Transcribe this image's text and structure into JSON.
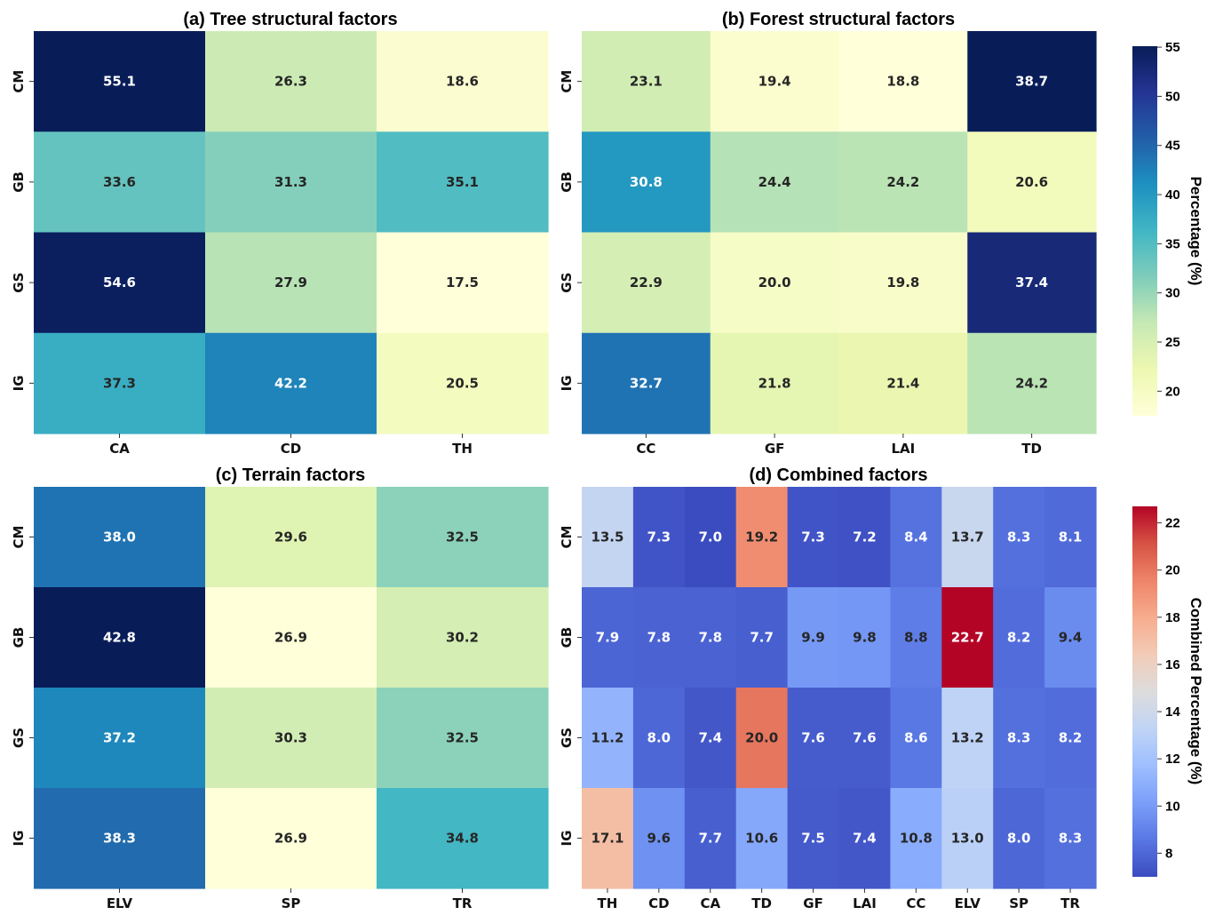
{
  "chart_data": [
    {
      "id": "a",
      "type": "heatmap",
      "title": "(a) Tree structural factors",
      "rows": [
        "CM",
        "GB",
        "GS",
        "IG"
      ],
      "columns": [
        "CA",
        "CD",
        "TH"
      ],
      "values": [
        [
          55.1,
          26.3,
          18.6
        ],
        [
          33.6,
          31.3,
          35.1
        ],
        [
          54.6,
          27.9,
          17.5
        ],
        [
          37.3,
          42.2,
          20.5
        ]
      ],
      "colormap": "YlGnBu",
      "value_format": "0.1f"
    },
    {
      "id": "b",
      "type": "heatmap",
      "title": "(b) Forest structural factors",
      "rows": [
        "CM",
        "GB",
        "GS",
        "IG"
      ],
      "columns": [
        "CC",
        "GF",
        "LAI",
        "TD"
      ],
      "values": [
        [
          23.1,
          19.4,
          18.8,
          38.7
        ],
        [
          30.8,
          24.4,
          24.2,
          20.6
        ],
        [
          22.9,
          20.0,
          19.8,
          37.4
        ],
        [
          32.7,
          21.8,
          21.4,
          24.2
        ]
      ],
      "colormap": "YlGnBu",
      "value_format": "0.1f"
    },
    {
      "id": "c",
      "type": "heatmap",
      "title": "(c) Terrain factors",
      "rows": [
        "CM",
        "GB",
        "GS",
        "IG"
      ],
      "columns": [
        "ELV",
        "SP",
        "TR"
      ],
      "values": [
        [
          38.0,
          29.6,
          32.5
        ],
        [
          42.8,
          26.9,
          30.2
        ],
        [
          37.2,
          30.3,
          32.5
        ],
        [
          38.3,
          26.9,
          34.8
        ]
      ],
      "colormap": "YlGnBu",
      "value_format": "0.1f"
    },
    {
      "id": "d",
      "type": "heatmap",
      "title": "(d) Combined factors",
      "rows": [
        "CM",
        "GB",
        "GS",
        "IG"
      ],
      "columns": [
        "TH",
        "CD",
        "CA",
        "TD",
        "GF",
        "LAI",
        "CC",
        "ELV",
        "SP",
        "TR"
      ],
      "values": [
        [
          13.5,
          7.3,
          7.0,
          19.2,
          7.3,
          7.2,
          8.4,
          13.7,
          8.3,
          8.1
        ],
        [
          7.9,
          7.8,
          7.8,
          7.7,
          9.9,
          9.8,
          8.8,
          22.7,
          8.2,
          9.4
        ],
        [
          11.2,
          8.0,
          7.4,
          20.0,
          7.6,
          7.6,
          8.6,
          13.2,
          8.3,
          8.2
        ],
        [
          17.1,
          9.6,
          7.7,
          10.6,
          7.5,
          7.4,
          10.8,
          13.0,
          8.0,
          8.3
        ]
      ],
      "colormap": "coolwarm",
      "value_format": "0.1f"
    }
  ],
  "colorbars": [
    {
      "id": "cb1",
      "label": "Percentage (%)",
      "colormap": "YlGnBu",
      "range": [
        17.5,
        55.1
      ],
      "ticks": [
        "20",
        "25",
        "30",
        "35",
        "40",
        "45",
        "50",
        "55"
      ]
    },
    {
      "id": "cb2",
      "label": "Combined Percentage (%)",
      "colormap": "coolwarm",
      "range": [
        7.0,
        22.7
      ],
      "ticks": [
        "8",
        "10",
        "12",
        "14",
        "16",
        "18",
        "20",
        "22"
      ]
    }
  ]
}
